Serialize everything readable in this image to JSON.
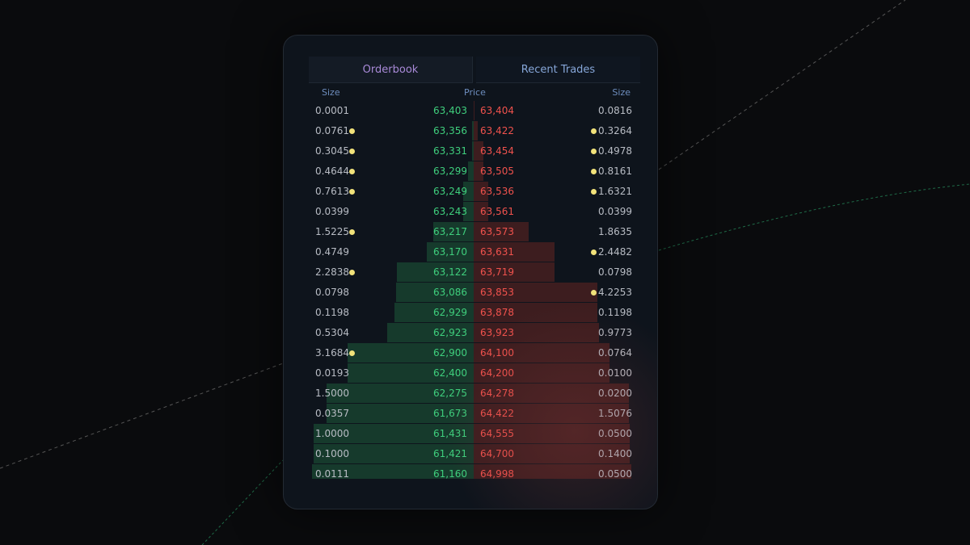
{
  "tabs": [
    "Orderbook",
    "Recent Trades"
  ],
  "header": {
    "bid_size": "Size",
    "price": "Price",
    "ask_size": "Size"
  },
  "orderbook": {
    "rows": [
      {
        "bid_size": "0.0001",
        "bid_dot": false,
        "bid_price": "63,403",
        "ask_price": "63,404",
        "ask_size": "0.0816",
        "ask_dot": false
      },
      {
        "bid_size": "0.0761",
        "bid_dot": true,
        "bid_price": "63,356",
        "ask_price": "63,422",
        "ask_size": "0.3264",
        "ask_dot": true
      },
      {
        "bid_size": "0.3045",
        "bid_dot": true,
        "bid_price": "63,331",
        "ask_price": "63,454",
        "ask_size": "0.4978",
        "ask_dot": true
      },
      {
        "bid_size": "0.4644",
        "bid_dot": true,
        "bid_price": "63,299",
        "ask_price": "63,505",
        "ask_size": "0.8161",
        "ask_dot": true
      },
      {
        "bid_size": "0.7613",
        "bid_dot": true,
        "bid_price": "63,249",
        "ask_price": "63,536",
        "ask_size": "1.6321",
        "ask_dot": true
      },
      {
        "bid_size": "0.0399",
        "bid_dot": false,
        "bid_price": "63,243",
        "ask_price": "63,561",
        "ask_size": "0.0399",
        "ask_dot": false
      },
      {
        "bid_size": "1.5225",
        "bid_dot": true,
        "bid_price": "63,217",
        "ask_price": "63,573",
        "ask_size": "1.8635",
        "ask_dot": false
      },
      {
        "bid_size": "0.4749",
        "bid_dot": false,
        "bid_price": "63,170",
        "ask_price": "63,631",
        "ask_size": "2.4482",
        "ask_dot": true
      },
      {
        "bid_size": "2.2838",
        "bid_dot": true,
        "bid_price": "63,122",
        "ask_price": "63,719",
        "ask_size": "0.0798",
        "ask_dot": false
      },
      {
        "bid_size": "0.0798",
        "bid_dot": false,
        "bid_price": "63,086",
        "ask_price": "63,853",
        "ask_size": "4.2253",
        "ask_dot": true
      },
      {
        "bid_size": "0.1198",
        "bid_dot": false,
        "bid_price": "62,929",
        "ask_price": "63,878",
        "ask_size": "0.1198",
        "ask_dot": false
      },
      {
        "bid_size": "0.5304",
        "bid_dot": false,
        "bid_price": "62,923",
        "ask_price": "63,923",
        "ask_size": "0.9773",
        "ask_dot": false
      },
      {
        "bid_size": "3.1684",
        "bid_dot": true,
        "bid_price": "62,900",
        "ask_price": "64,100",
        "ask_size": "0.0764",
        "ask_dot": false
      },
      {
        "bid_size": "0.0193",
        "bid_dot": false,
        "bid_price": "62,400",
        "ask_price": "64,200",
        "ask_size": "0.0100",
        "ask_dot": false
      },
      {
        "bid_size": "1.5000",
        "bid_dot": false,
        "bid_price": "62,275",
        "ask_price": "64,278",
        "ask_size": "0.0200",
        "ask_dot": false
      },
      {
        "bid_size": "0.0357",
        "bid_dot": false,
        "bid_price": "61,673",
        "ask_price": "64,422",
        "ask_size": "1.5076",
        "ask_dot": false
      },
      {
        "bid_size": "1.0000",
        "bid_dot": false,
        "bid_price": "61,431",
        "ask_price": "64,555",
        "ask_size": "0.0500",
        "ask_dot": false
      },
      {
        "bid_size": "0.1000",
        "bid_dot": false,
        "bid_price": "61,421",
        "ask_price": "64,700",
        "ask_size": "0.1400",
        "ask_dot": false
      },
      {
        "bid_size": "0.0111",
        "bid_dot": false,
        "bid_price": "61,160",
        "ask_price": "64,998",
        "ask_size": "0.0500",
        "ask_dot": false
      }
    ]
  }
}
